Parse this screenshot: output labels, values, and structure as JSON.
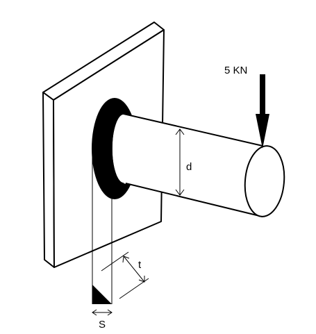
{
  "diagram": {
    "load_label": "5 KN",
    "diameter_label": "d",
    "throat_label": "t",
    "leg_label": "S"
  },
  "colors": {
    "stroke": "#000000",
    "background": "#ffffff",
    "weld_fill": "#000000"
  }
}
